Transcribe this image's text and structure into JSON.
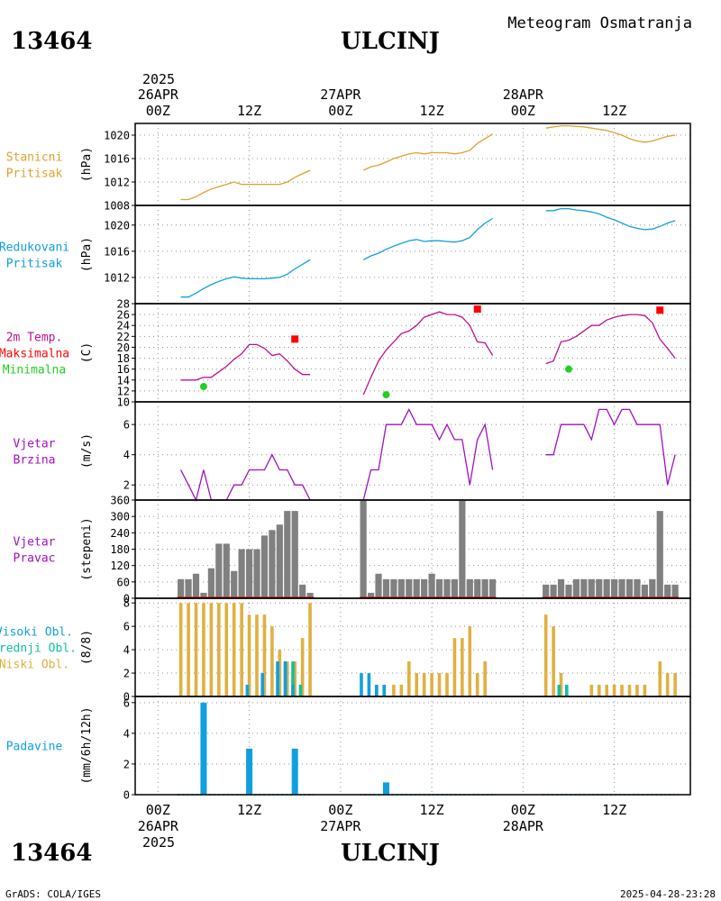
{
  "header": {
    "product": "Meteogram Osmatranja",
    "station_id": "13464",
    "station_name": "ULCINJ",
    "top_year": "2025",
    "bottom_year": "2025"
  },
  "footer": {
    "credit": "GrADS: COLA/IGES",
    "timestamp": "2025-04-28-23:28"
  },
  "colors": {
    "pressure": "#e0a030",
    "reduced_pressure": "#10a0e0",
    "temperature": "#c01090",
    "tmax": "#ff0000",
    "tmin": "#20d020",
    "wind": "#a010c0",
    "wind_dir_bar": "#808080",
    "high_cloud": "#10a0e0",
    "mid_cloud": "#10c0a0",
    "low_cloud": "#e0b040",
    "precip": "#10a0e0",
    "grid": "#909090"
  },
  "chart_data": {
    "type": "line",
    "x_axis": {
      "top_ticks": [
        {
          "line1": "26APR",
          "line2": "00Z"
        },
        {
          "line1": "",
          "line2": "12Z"
        },
        {
          "line1": "27APR",
          "line2": "00Z"
        },
        {
          "line1": "",
          "line2": "12Z"
        },
        {
          "line1": "28APR",
          "line2": "00Z"
        },
        {
          "line1": "",
          "line2": "12Z"
        }
      ],
      "bottom_ticks": [
        {
          "line1": "00Z",
          "line2": "26APR"
        },
        {
          "line1": "12Z",
          "line2": ""
        },
        {
          "line1": "00Z",
          "line2": "27APR"
        },
        {
          "line1": "12Z",
          "line2": ""
        },
        {
          "line1": "00Z",
          "line2": "28APR"
        },
        {
          "line1": "12Z",
          "line2": ""
        }
      ],
      "tick_hours": [
        0,
        12,
        24,
        36,
        48,
        60
      ],
      "xlim_hours": [
        -3,
        70
      ],
      "units": "hours since 2025-04-26 00Z"
    },
    "panels": [
      {
        "id": "station_pressure",
        "label": [
          "Stanicni",
          "Pritisak"
        ],
        "unit": "(hPa)",
        "ylim": [
          1008,
          1022
        ],
        "yticks": [
          1008,
          1012,
          1016,
          1020
        ],
        "series": [
          {
            "kind": "line",
            "x": [
              3,
              4,
              5,
              6,
              7,
              8,
              9,
              10,
              11,
              12,
              13,
              14,
              15,
              16,
              17,
              18,
              19,
              20
            ],
            "y": [
              1009,
              1009,
              1009.5,
              1010.2,
              1010.8,
              1011.2,
              1011.6,
              1012,
              1011.6,
              1011.6,
              1011.6,
              1011.6,
              1011.6,
              1011.6,
              1012,
              1012.8,
              1013.4,
              1014
            ]
          },
          {
            "kind": "line",
            "x": [
              27,
              28,
              29,
              30,
              31,
              32,
              33,
              34,
              35,
              36,
              37,
              38,
              39,
              40,
              41,
              42,
              43,
              44
            ],
            "y": [
              1014,
              1014.6,
              1014.9,
              1015.4,
              1016,
              1016.4,
              1016.8,
              1017,
              1016.8,
              1017,
              1017,
              1017,
              1016.8,
              1017,
              1017.4,
              1018.6,
              1019.4,
              1020.2
            ]
          },
          {
            "kind": "line",
            "x": [
              51,
              52,
              53,
              54,
              55,
              56,
              57,
              58,
              59,
              60,
              61,
              62,
              63,
              64,
              65,
              66,
              67,
              68
            ],
            "y": [
              1021.2,
              1021.4,
              1021.6,
              1021.6,
              1021.5,
              1021.4,
              1021.2,
              1021,
              1020.8,
              1020.4,
              1020,
              1019.4,
              1019,
              1018.8,
              1019,
              1019.4,
              1019.8,
              1020
            ]
          }
        ]
      },
      {
        "id": "reduced_pressure",
        "label": [
          "Redukovani",
          "Pritisak"
        ],
        "unit": "(hPa)",
        "ylim": [
          1008,
          1023
        ],
        "yticks": [
          1012,
          1016,
          1020
        ],
        "series": [
          {
            "kind": "line",
            "x": [
              3,
              4,
              5,
              6,
              7,
              8,
              9,
              10,
              11,
              12,
              13,
              14,
              15,
              16,
              17,
              18,
              19,
              20
            ],
            "y": [
              1009,
              1009,
              1009.6,
              1010.3,
              1010.9,
              1011.4,
              1011.8,
              1012.1,
              1011.9,
              1011.8,
              1011.8,
              1011.8,
              1011.9,
              1012,
              1012.5,
              1013.3,
              1014,
              1014.7
            ]
          },
          {
            "kind": "line",
            "x": [
              27,
              28,
              29,
              30,
              31,
              32,
              33,
              34,
              35,
              36,
              37,
              38,
              39,
              40,
              41,
              42,
              43,
              44
            ],
            "y": [
              1014.7,
              1015.3,
              1015.7,
              1016.3,
              1016.8,
              1017.2,
              1017.6,
              1017.8,
              1017.5,
              1017.6,
              1017.6,
              1017.5,
              1017.4,
              1017.6,
              1018.1,
              1019.3,
              1020.3,
              1021
            ]
          },
          {
            "kind": "line",
            "x": [
              51,
              52,
              53,
              54,
              55,
              56,
              57,
              58,
              59,
              60,
              61,
              62,
              63,
              64,
              65,
              66,
              67,
              68
            ],
            "y": [
              1022.2,
              1022.2,
              1022.5,
              1022.5,
              1022.3,
              1022.2,
              1022,
              1021.7,
              1021.2,
              1020.8,
              1020.3,
              1019.8,
              1019.5,
              1019.3,
              1019.4,
              1019.8,
              1020.3,
              1020.7
            ]
          }
        ]
      },
      {
        "id": "temperature",
        "label": [
          "2m Temp.",
          "Maksimalna",
          "Minimalna"
        ],
        "unit": "(C)",
        "ylim": [
          10,
          28
        ],
        "yticks": [
          10,
          12,
          14,
          16,
          18,
          20,
          22,
          24,
          26,
          28
        ],
        "series": [
          {
            "kind": "line",
            "x": [
              3,
              4,
              5,
              6,
              7,
              8,
              9,
              10,
              11,
              12,
              13,
              14,
              15,
              16,
              17,
              18,
              19,
              20
            ],
            "y": [
              14,
              14,
              14,
              14.5,
              14.5,
              15.5,
              16.5,
              17.8,
              18.8,
              20.5,
              20.5,
              19.8,
              18.5,
              18.8,
              17.5,
              16,
              15,
              15
            ]
          },
          {
            "kind": "line",
            "x": [
              27,
              28,
              29,
              30,
              31,
              32,
              33,
              34,
              35,
              36,
              37,
              38,
              39,
              40,
              41,
              42,
              43,
              44
            ],
            "y": [
              11.3,
              14.5,
              17.5,
              19.5,
              21,
              22.5,
              23,
              24,
              25.5,
              26,
              26.5,
              26,
              26,
              25.5,
              24,
              21,
              20.8,
              18.5
            ]
          },
          {
            "kind": "line",
            "x": [
              51,
              52,
              53,
              54,
              55,
              56,
              57,
              58,
              59,
              60,
              61,
              62,
              63,
              64,
              65,
              66,
              67,
              68
            ],
            "y": [
              17,
              17.5,
              21,
              21.3,
              22,
              23,
              24,
              24,
              25,
              25.5,
              25.8,
              26,
              26,
              25.8,
              24.5,
              21.5,
              19.8,
              18
            ]
          }
        ],
        "tmax": {
          "x": [
            18,
            42,
            66
          ],
          "y": [
            21.5,
            27,
            26.8
          ]
        },
        "tmin": {
          "x": [
            6,
            30,
            54
          ],
          "y": [
            12.8,
            11.3,
            16
          ]
        }
      },
      {
        "id": "wind_speed",
        "label": [
          "Vjetar",
          "Brzina"
        ],
        "unit": "(m/s)",
        "ylim": [
          1,
          7.5
        ],
        "yticks": [
          2,
          4,
          6
        ],
        "series": [
          {
            "kind": "line",
            "x": [
              3,
              4,
              5,
              6,
              7,
              8,
              9,
              10,
              11,
              12,
              13,
              14,
              15,
              16,
              17,
              18,
              19,
              20
            ],
            "y": [
              3,
              2,
              1,
              3,
              1,
              1,
              1,
              2,
              2,
              3,
              3,
              3,
              4,
              3,
              3,
              2,
              2,
              1
            ]
          },
          {
            "kind": "line",
            "x": [
              27,
              28,
              29,
              30,
              31,
              32,
              33,
              34,
              35,
              36,
              37,
              38,
              39,
              40,
              41,
              42,
              43,
              44
            ],
            "y": [
              1,
              3,
              3,
              6,
              6,
              6,
              7,
              6,
              6,
              6,
              5,
              6,
              5,
              5,
              2,
              5,
              6,
              3
            ]
          },
          {
            "kind": "line",
            "x": [
              51,
              52,
              53,
              54,
              55,
              56,
              57,
              58,
              59,
              60,
              61,
              62,
              63,
              64,
              65,
              66,
              67,
              68
            ],
            "y": [
              4,
              4,
              6,
              6,
              6,
              6,
              5,
              7,
              7,
              6,
              7,
              7,
              6,
              6,
              6,
              6,
              2,
              4
            ]
          }
        ]
      },
      {
        "id": "wind_direction",
        "label": [
          "Vjetar",
          "Pravac"
        ],
        "unit": "(stepeni)",
        "ylim": [
          0,
          360
        ],
        "yticks": [
          0,
          60,
          120,
          180,
          240,
          300,
          360
        ],
        "bars": {
          "x": [
            3,
            4,
            5,
            6,
            7,
            8,
            9,
            10,
            11,
            12,
            13,
            14,
            15,
            16,
            17,
            18,
            19,
            20,
            27,
            28,
            29,
            30,
            31,
            32,
            33,
            34,
            35,
            36,
            37,
            38,
            39,
            40,
            41,
            42,
            43,
            44,
            51,
            52,
            53,
            54,
            55,
            56,
            57,
            58,
            59,
            60,
            61,
            62,
            63,
            64,
            65,
            66,
            67,
            68
          ],
          "values": [
            70,
            70,
            90,
            20,
            110,
            200,
            200,
            100,
            180,
            180,
            180,
            230,
            250,
            270,
            320,
            320,
            50,
            20,
            360,
            20,
            90,
            70,
            70,
            70,
            70,
            70,
            70,
            90,
            70,
            70,
            70,
            360,
            70,
            70,
            70,
            70,
            50,
            50,
            70,
            50,
            70,
            70,
            70,
            70,
            70,
            70,
            70,
            70,
            70,
            50,
            70,
            320,
            50,
            50
          ]
        }
      },
      {
        "id": "clouds",
        "label": [
          "Visoki Obl.",
          "Srednji Obl.",
          "Niski Obl."
        ],
        "unit": "(8/8)",
        "ylim": [
          0,
          8.4
        ],
        "yticks": [
          0,
          2,
          4,
          6,
          8
        ],
        "low": {
          "x": [
            3,
            4,
            5,
            6,
            7,
            8,
            9,
            10,
            11,
            12,
            13,
            14,
            15,
            16,
            17,
            18,
            19,
            20,
            27,
            28,
            29,
            30,
            31,
            32,
            33,
            34,
            35,
            36,
            37,
            38,
            39,
            40,
            41,
            42,
            43,
            44,
            51,
            52,
            53,
            54,
            55,
            56,
            57,
            58,
            59,
            60,
            61,
            62,
            63,
            64,
            65,
            66,
            67,
            68
          ],
          "values": [
            8,
            8,
            8,
            8,
            8,
            8,
            8,
            8,
            8,
            7,
            7,
            7,
            6,
            4,
            3,
            3,
            5,
            8,
            0,
            0,
            0,
            0,
            1,
            1,
            3,
            2,
            2,
            2,
            2,
            2,
            5,
            5,
            6,
            2,
            3,
            0,
            7,
            6,
            2,
            0,
            0,
            0,
            1,
            1,
            1,
            1,
            1,
            1,
            1,
            1,
            0,
            3,
            2,
            2
          ]
        },
        "mid": {
          "x": [
            14,
            16,
            17,
            18,
            19,
            29,
            30,
            53,
            54
          ],
          "values": [
            1,
            3,
            3,
            3,
            1,
            1,
            1,
            1,
            1
          ]
        },
        "high": {
          "x": [
            12,
            14,
            16,
            17,
            18,
            27,
            28,
            29,
            30
          ],
          "values": [
            1,
            2,
            3,
            3,
            1,
            2,
            2,
            1,
            1
          ]
        }
      },
      {
        "id": "precipitation",
        "label": [
          "Padavine"
        ],
        "unit": "(mm/6h/12h)",
        "ylim": [
          0,
          6.4
        ],
        "yticks": [
          0,
          2,
          4,
          6
        ],
        "bars": {
          "x": [
            6,
            12,
            18,
            30
          ],
          "values": [
            6,
            3,
            3,
            0.8
          ]
        },
        "baseline_segments": [
          [
            3,
            20
          ],
          [
            27,
            44
          ],
          [
            51,
            68
          ]
        ]
      }
    ]
  }
}
